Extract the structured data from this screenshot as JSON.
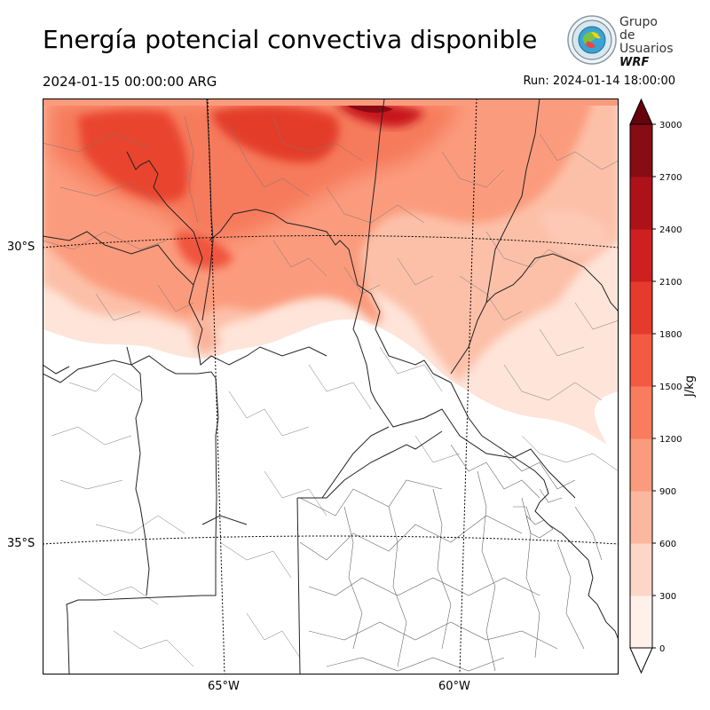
{
  "title": "Energía potencial convectiva disponible",
  "valid_time": "2024-01-15 00:00:00 ARG",
  "run_time": "Run: 2024-01-14 18:00:00",
  "logo": {
    "line1": "Grupo de",
    "line2": "Usuarios",
    "line3": "WRF",
    "icon": "wrf-group-globe-logo"
  },
  "map": {
    "latitude_labels": [
      "30°S",
      "35°S"
    ],
    "longitude_labels": [
      "65°W",
      "60°W"
    ]
  },
  "colorbar": {
    "unit": "J/kg",
    "ticks": [
      "0",
      "300",
      "600",
      "900",
      "1200",
      "1500",
      "1800",
      "2100",
      "2400",
      "2700",
      "3000"
    ],
    "colors": [
      "#fff0ea",
      "#fdd6c8",
      "#fcb89e",
      "#fb9a7d",
      "#f87c5d",
      "#f45a41",
      "#e63a2c",
      "#cf1f20",
      "#ae1219",
      "#870c14",
      "#67000d"
    ]
  }
}
